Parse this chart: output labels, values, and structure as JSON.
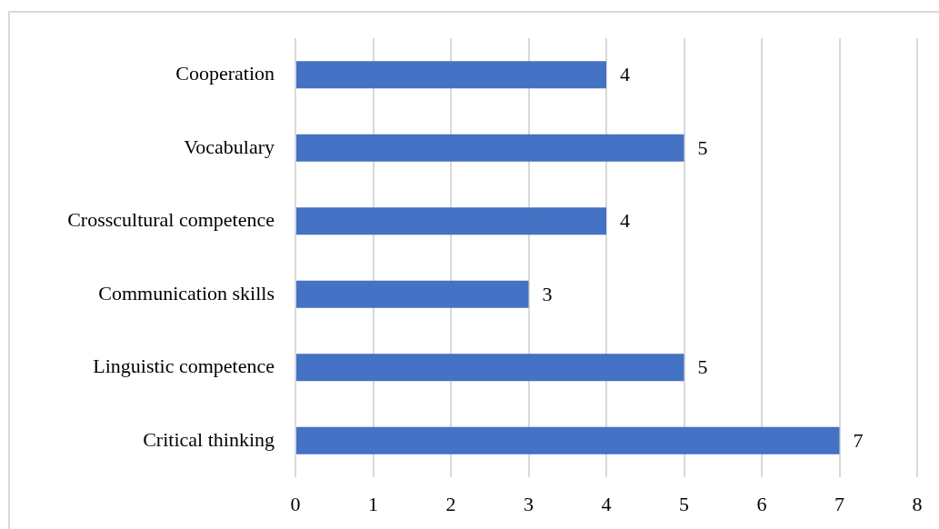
{
  "chart_data": {
    "type": "bar",
    "orientation": "horizontal",
    "categories": [
      "Cooperation",
      "Vocabulary",
      "Crosscultural competence",
      "Communication skills",
      "Linguistic competence",
      "Critical thinking"
    ],
    "values": [
      4,
      5,
      4,
      3,
      5,
      7
    ],
    "color": "#4472c4",
    "xlim": [
      0,
      8
    ],
    "xticks": [
      0,
      1,
      2,
      3,
      4,
      5,
      6,
      7,
      8
    ],
    "grid": "x",
    "data_labels": true
  }
}
